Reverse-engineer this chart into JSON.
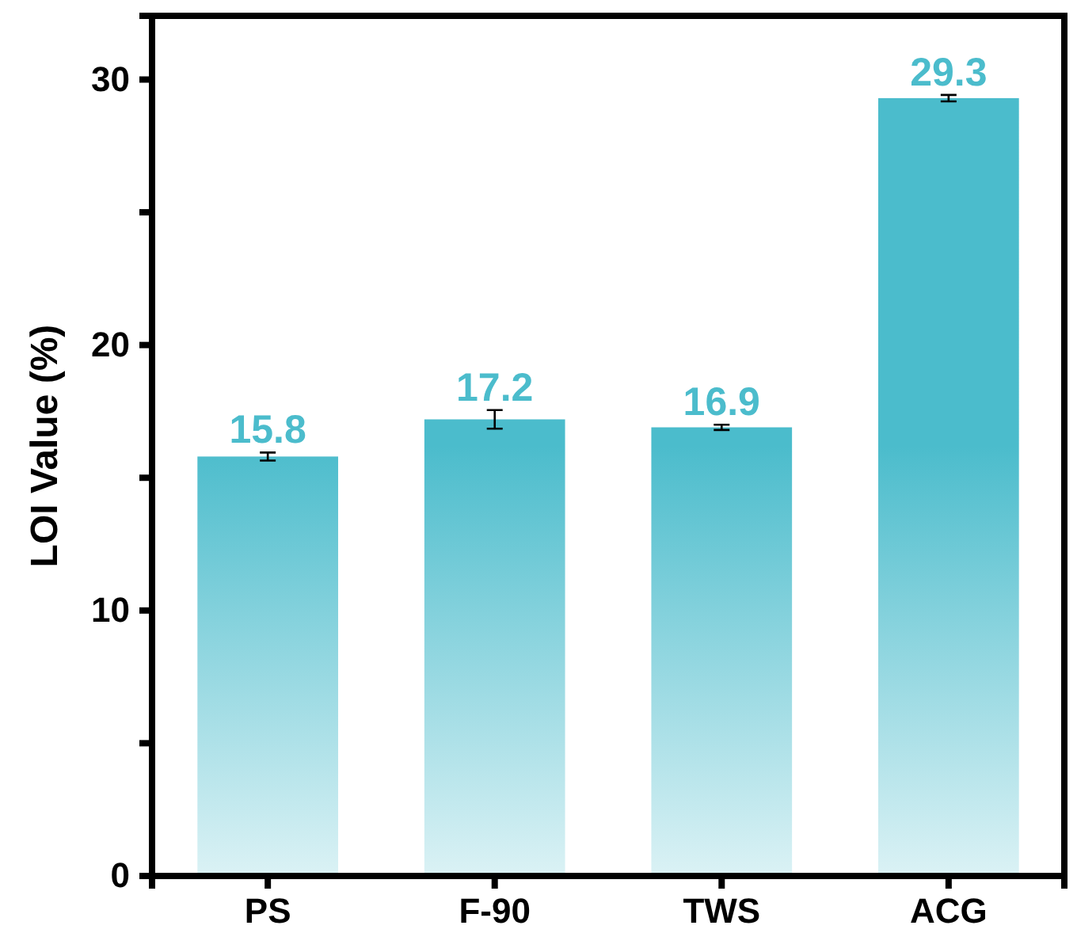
{
  "chart_data": {
    "type": "bar",
    "ylabel": "LOI Value (%)",
    "categories": [
      "PS",
      "F-90",
      "TWS",
      "ACG"
    ],
    "values": [
      15.8,
      17.2,
      16.9,
      29.3
    ],
    "errors": [
      0.15,
      0.35,
      0.1,
      0.12
    ],
    "color": "#4bbccc",
    "data_labels": true,
    "ylim": [
      0,
      32.4
    ],
    "yticks": [
      0,
      {
        "value": 5,
        "label": null
      },
      10,
      {
        "value": 15,
        "label": null
      },
      20,
      {
        "value": 25,
        "label": null
      },
      30
    ],
    "grid": false
  }
}
